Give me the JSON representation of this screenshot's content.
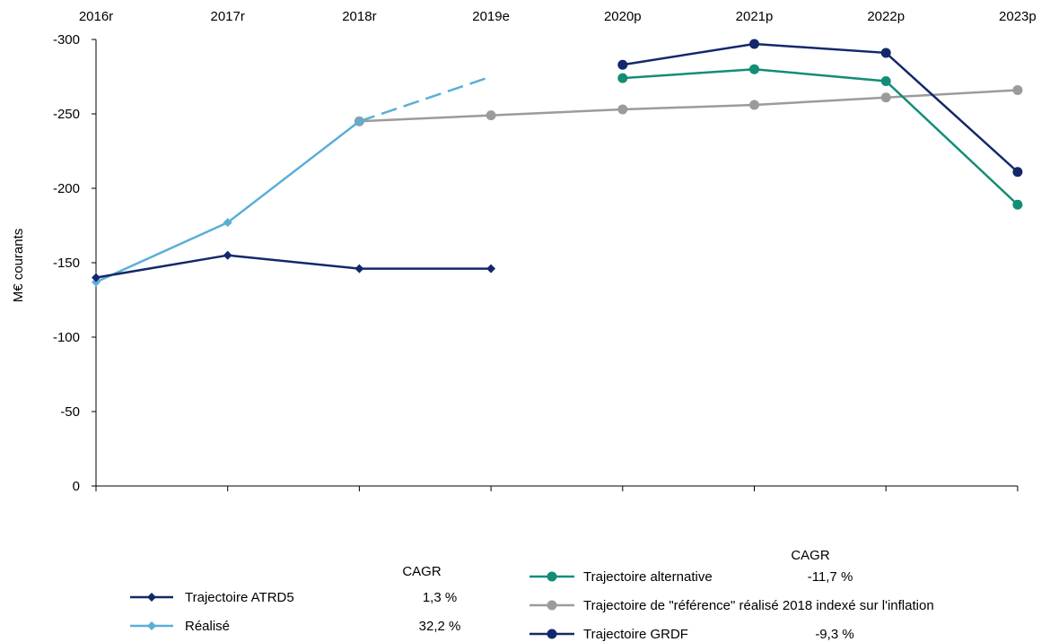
{
  "chart_data": {
    "type": "line",
    "title": "",
    "xlabel": "",
    "ylabel": "M€ courants",
    "y_inverted": true,
    "ylim": [
      0,
      -300
    ],
    "yticks": [
      0,
      -50,
      -100,
      -150,
      -200,
      -250,
      -300
    ],
    "ytick_labels": [
      "0",
      "-50",
      "-100",
      "-150",
      "-200",
      "-250",
      "-300"
    ],
    "categories": [
      "2016r",
      "2017r",
      "2018r",
      "2019e",
      "2020p",
      "2021p",
      "2022p",
      "2023p"
    ],
    "series": [
      {
        "name": "Trajectoire ATRD5",
        "color": "#13286a",
        "marker": "diamond",
        "values": [
          -140,
          -155,
          -146,
          -146,
          null,
          null,
          null,
          null
        ],
        "cagr": "1,3 %"
      },
      {
        "name": "Réalisé",
        "color": "#5aafd6",
        "marker": "diamond",
        "values": [
          -137,
          -177,
          -245,
          null,
          null,
          null,
          null,
          null
        ],
        "dashed_extension": [
          [
            "2018r",
            -245
          ],
          [
            "2019e",
            -275
          ]
        ],
        "cagr": "32,2 %"
      },
      {
        "name": "Trajectoire alternative",
        "color": "#138d75",
        "marker": "circle",
        "values": [
          null,
          null,
          null,
          null,
          -274,
          -280,
          -272,
          -189
        ],
        "cagr": "-11,7 %"
      },
      {
        "name": "Trajectoire de \"référence\" réalisé 2018 indexé sur l'inflation",
        "color": "#9b9b9b",
        "marker": "circle",
        "values": [
          null,
          null,
          -245,
          -249,
          -253,
          -256,
          -261,
          -266
        ],
        "cagr": ""
      },
      {
        "name": "Trajectoire GRDF",
        "color": "#13286a",
        "marker": "circle",
        "values": [
          null,
          null,
          null,
          null,
          -283,
          -297,
          -291,
          -211
        ],
        "cagr": "-9,3 %"
      }
    ],
    "legend_left_header": "CAGR",
    "legend_right_header": "CAGR",
    "grid": false,
    "legend_position": "bottom"
  }
}
